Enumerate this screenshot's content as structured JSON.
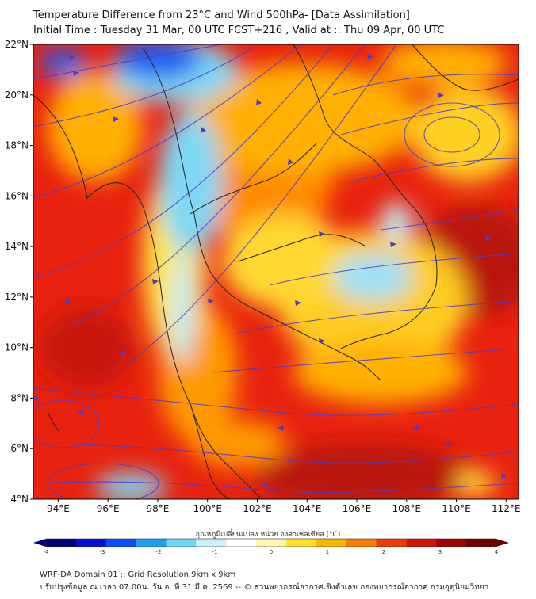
{
  "header": {
    "title_line1": "Temperature Difference from 23°C and Wind 500hPa- [Data Assimilation]",
    "title_line2": "Initial Time : Tuesday 31 Mar, 00 UTC FCST+216 , Valid at ::  Thu 09 Apr, 00 UTC"
  },
  "map": {
    "lat_labels": [
      "22°N",
      "20°N",
      "18°N",
      "16°N",
      "14°N",
      "12°N",
      "10°N",
      "8°N",
      "6°N",
      "4°N"
    ],
    "lon_labels": [
      "94°E",
      "96°E",
      "98°E",
      "100°E",
      "102°E",
      "104°E",
      "106°E",
      "108°E",
      "110°E",
      "112°E"
    ],
    "colors": {
      "warm_red": "#e8220e",
      "dark_red": "#b8140c",
      "orange": "#ff8a00",
      "yellow": "#ffe83a",
      "pale": "#fff6c4",
      "cyan": "#7fd8f4",
      "blue": "#1a5ef0",
      "streamline": "#4c3dc8",
      "border": "#222222"
    }
  },
  "colorbar": {
    "label": "อุณหภูมิเปลี่ยนแปลง หน่วย องศาเซลเซียส (°C)",
    "ticks": [
      "-4",
      "-3",
      "-2",
      "-1",
      "0",
      "1",
      "2",
      "3",
      "4"
    ],
    "colors": [
      "#00007a",
      "#0010d8",
      "#0c4cf8",
      "#1ea0f8",
      "#6fd8f8",
      "#c8f2ff",
      "#ffffff",
      "#fff6b0",
      "#ffe02a",
      "#ffb400",
      "#ff7a00",
      "#f03a00",
      "#d41400",
      "#a00000",
      "#6e0000"
    ]
  },
  "footer": {
    "line1": "WRF-DA Domain 01 :: Grid Resolution 9km x 9km",
    "line2": "ปรับปรุงข้อมูล ณ เวลา 07:00น. วัน อ. ที่ 31 มี.ค. 2569 -- © ส่วนพยากรณ์อากาศเชิงตัวเลข กองพยากรณ์อากาศ กรมอุตุนิยมวิทยา"
  }
}
